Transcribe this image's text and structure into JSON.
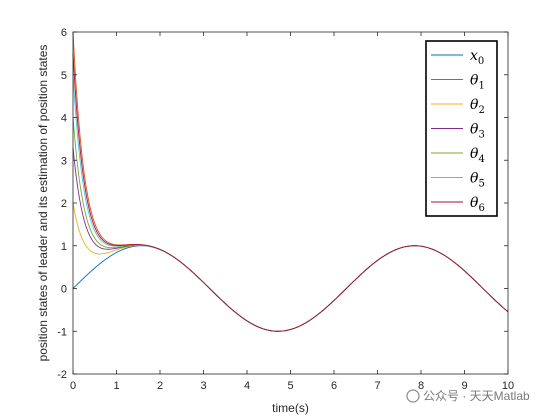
{
  "chart_data": {
    "type": "line",
    "title": "",
    "xlabel": "time(s)",
    "ylabel": "position states of leader and its estimation of position states",
    "xlim": [
      0,
      10
    ],
    "ylim": [
      -2,
      6
    ],
    "xticks": [
      "0",
      "1",
      "2",
      "3",
      "4",
      "5",
      "6",
      "7",
      "8",
      "9",
      "10"
    ],
    "yticks": [
      "-2",
      "-1",
      "0",
      "1",
      "2",
      "3",
      "4",
      "5",
      "6"
    ],
    "grid": false,
    "legend_position": "top-right",
    "leader": {
      "name": "x0",
      "function": "sin(t)",
      "color": "#0072BD"
    },
    "series": [
      {
        "name": "θ1",
        "color": "#D95319",
        "initial": 6.0,
        "converged_by": 1.2
      },
      {
        "name": "θ2",
        "color": "#EDB120",
        "initial": 2.0,
        "converged_by": 1.2
      },
      {
        "name": "θ3",
        "color": "#7E2F8E",
        "initial": 3.3,
        "converged_by": 1.2
      },
      {
        "name": "θ4",
        "color": "#77AC30",
        "initial": 4.0,
        "converged_by": 1.2
      },
      {
        "name": "θ5",
        "color": "#4DBEEE",
        "initial": 5.0,
        "converged_by": 1.2
      },
      {
        "name": "θ6",
        "color": "#A2142F",
        "initial": 5.5,
        "converged_by": 1.2
      }
    ],
    "legend": [
      {
        "base": "x",
        "sub": "0",
        "color": "#0072BD"
      },
      {
        "base": "θ",
        "sub": "1",
        "color": "#D95319"
      },
      {
        "base": "θ",
        "sub": "2",
        "color": "#EDB120"
      },
      {
        "base": "θ",
        "sub": "3",
        "color": "#7E2F8E"
      },
      {
        "base": "θ",
        "sub": "4",
        "color": "#77AC30"
      },
      {
        "base": "θ",
        "sub": "5",
        "color": "#4DBEEE"
      },
      {
        "base": "θ",
        "sub": "6",
        "color": "#A2142F"
      }
    ]
  },
  "watermark": "公众号 · 天天Matlab"
}
